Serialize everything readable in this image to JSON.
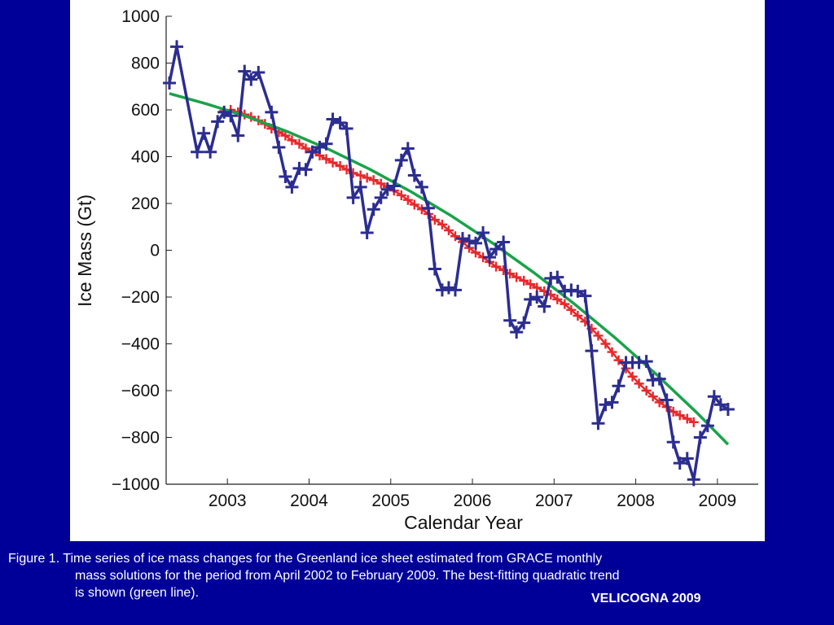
{
  "caption": {
    "line1": "Figure 1. Time series of ice mass changes for the Greenland ice sheet estimated from GRACE monthly",
    "line2": "mass solutions for the period from April 2002 to February 2009. The best-fitting quadratic trend",
    "line3": "is shown (green line).",
    "credit": "VELICOGNA 2009"
  },
  "chart_data": {
    "type": "line",
    "title": "",
    "xlabel": "Calendar Year",
    "ylabel": "Ice Mass (Gt)",
    "xlim": [
      2002.25,
      2009.5
    ],
    "ylim": [
      -1000,
      1000
    ],
    "xticks": [
      2003,
      2004,
      2005,
      2006,
      2007,
      2008,
      2009
    ],
    "xtick_labels": [
      "2003",
      "2004",
      "2005",
      "2006",
      "2007",
      "2008",
      "2009"
    ],
    "yticks": [
      1000,
      800,
      600,
      400,
      200,
      0,
      -200,
      -400,
      -600,
      -800,
      -1000
    ],
    "ytick_labels": [
      "1000",
      "800",
      "600",
      "400",
      "200",
      "0",
      "−200",
      "−400",
      "−600",
      "−800",
      "−1000"
    ],
    "colors": {
      "monthly": "#2b2d91",
      "smoothed": "#e8282b",
      "trend": "#1aa34a"
    },
    "series": [
      {
        "key": "monthly",
        "marker": "plus",
        "x": [
          2002.29,
          2002.38,
          2002.63,
          2002.71,
          2002.79,
          2002.88,
          2002.96,
          2003.04,
          2003.13,
          2003.21,
          2003.29,
          2003.38,
          2003.54,
          2003.63,
          2003.71,
          2003.79,
          2003.88,
          2003.96,
          2004.04,
          2004.13,
          2004.21,
          2004.29,
          2004.38,
          2004.46,
          2004.54,
          2004.63,
          2004.71,
          2004.79,
          2004.88,
          2004.96,
          2005.04,
          2005.13,
          2005.21,
          2005.29,
          2005.38,
          2005.46,
          2005.54,
          2005.63,
          2005.71,
          2005.79,
          2005.88,
          2005.96,
          2006.04,
          2006.13,
          2006.21,
          2006.29,
          2006.38,
          2006.46,
          2006.54,
          2006.63,
          2006.71,
          2006.79,
          2006.88,
          2006.96,
          2007.04,
          2007.13,
          2007.21,
          2007.29,
          2007.38,
          2007.46,
          2007.54,
          2007.63,
          2007.71,
          2007.79,
          2007.88,
          2007.96,
          2008.04,
          2008.13,
          2008.21,
          2008.29,
          2008.38,
          2008.46,
          2008.54,
          2008.63,
          2008.71,
          2008.79,
          2008.88,
          2008.96,
          2009.04,
          2009.13
        ],
        "y": [
          715,
          870,
          420,
          500,
          420,
          550,
          590,
          575,
          490,
          765,
          730,
          760,
          590,
          440,
          315,
          270,
          350,
          345,
          420,
          440,
          455,
          560,
          545,
          520,
          225,
          270,
          75,
          175,
          225,
          260,
          275,
          385,
          435,
          320,
          270,
          180,
          -80,
          -170,
          -160,
          -170,
          50,
          40,
          30,
          75,
          -30,
          5,
          35,
          -300,
          -350,
          -310,
          -210,
          -200,
          -240,
          -120,
          -115,
          -175,
          -170,
          -175,
          -195,
          -430,
          -740,
          -660,
          -650,
          -580,
          -480,
          -480,
          -480,
          -475,
          -555,
          -550,
          -640,
          -820,
          -910,
          -890,
          -980,
          -800,
          -750,
          -625,
          -660,
          -680
        ]
      },
      {
        "key": "smoothed",
        "marker": "plus",
        "x": [
          2002.96,
          2003.04,
          2003.13,
          2003.21,
          2003.29,
          2003.38,
          2003.46,
          2003.54,
          2003.63,
          2003.71,
          2003.79,
          2003.88,
          2003.96,
          2004.04,
          2004.13,
          2004.21,
          2004.29,
          2004.38,
          2004.46,
          2004.54,
          2004.63,
          2004.71,
          2004.79,
          2004.88,
          2004.96,
          2005.04,
          2005.13,
          2005.21,
          2005.29,
          2005.38,
          2005.46,
          2005.54,
          2005.63,
          2005.71,
          2005.79,
          2005.88,
          2005.96,
          2006.04,
          2006.13,
          2006.21,
          2006.29,
          2006.38,
          2006.46,
          2006.54,
          2006.63,
          2006.71,
          2006.79,
          2006.88,
          2006.96,
          2007.04,
          2007.13,
          2007.21,
          2007.29,
          2007.38,
          2007.46,
          2007.54,
          2007.63,
          2007.71,
          2007.79,
          2007.88,
          2007.96,
          2008.04,
          2008.13,
          2008.21,
          2008.29,
          2008.38,
          2008.46,
          2008.54,
          2008.63,
          2008.71
        ],
        "y": [
          595,
          600,
          590,
          580,
          570,
          555,
          540,
          520,
          505,
          490,
          470,
          455,
          435,
          420,
          405,
          390,
          375,
          360,
          345,
          330,
          320,
          310,
          300,
          285,
          270,
          255,
          235,
          215,
          195,
          175,
          155,
          130,
          110,
          85,
          60,
          35,
          10,
          -10,
          -30,
          -50,
          -70,
          -85,
          -100,
          -115,
          -130,
          -145,
          -160,
          -175,
          -190,
          -210,
          -230,
          -255,
          -280,
          -305,
          -335,
          -365,
          -400,
          -435,
          -470,
          -505,
          -540,
          -570,
          -600,
          -625,
          -650,
          -670,
          -690,
          -705,
          -720,
          -735
        ]
      },
      {
        "key": "trend",
        "marker": "none",
        "x": [
          2002.29,
          2002.75,
          2003.25,
          2003.75,
          2004.25,
          2004.75,
          2005.25,
          2005.75,
          2006.25,
          2006.75,
          2007.25,
          2007.75,
          2008.25,
          2008.75,
          2009.13
        ],
        "y": [
          670,
          625,
          570,
          505,
          430,
          345,
          250,
          145,
          30,
          -95,
          -230,
          -375,
          -530,
          -695,
          -830
        ]
      }
    ]
  }
}
